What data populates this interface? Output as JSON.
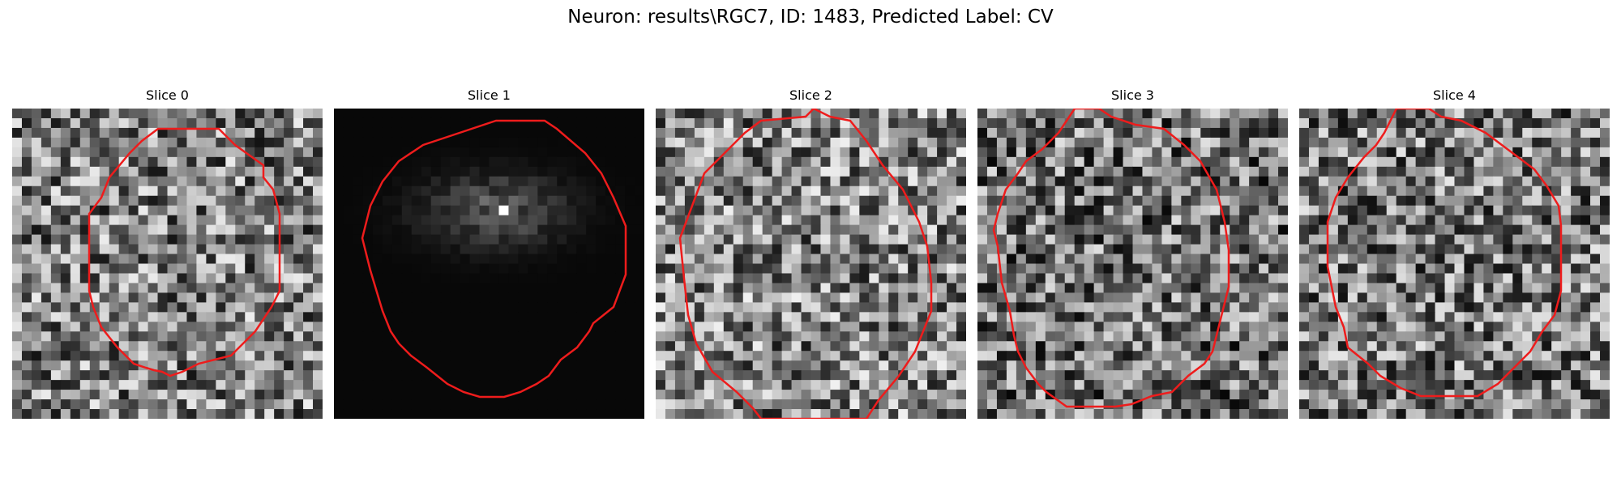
{
  "figure": {
    "title": "Neuron: results\\RGC7, ID: 1483, Predicted Label: CV",
    "contour_color": "#ee1c1c",
    "colormap": "grayscale"
  },
  "panels": [
    {
      "title": "Slice 0",
      "seed": 11,
      "base": 0.5,
      "dark": 0.05,
      "contour": "oct-small"
    },
    {
      "title": "Slice 1",
      "seed": 23,
      "base": 0.03,
      "dark": 0.0,
      "contour": "oct-large"
    },
    {
      "title": "Slice 2",
      "seed": 37,
      "base": 0.52,
      "dark": 0.0,
      "contour": "oct-clipped"
    },
    {
      "title": "Slice 3",
      "seed": 51,
      "base": 0.45,
      "dark": 0.0,
      "contour": "oct-clipped2"
    },
    {
      "title": "Slice 4",
      "seed": 67,
      "base": 0.48,
      "dark": 0.0,
      "contour": "oct-large2"
    }
  ]
}
